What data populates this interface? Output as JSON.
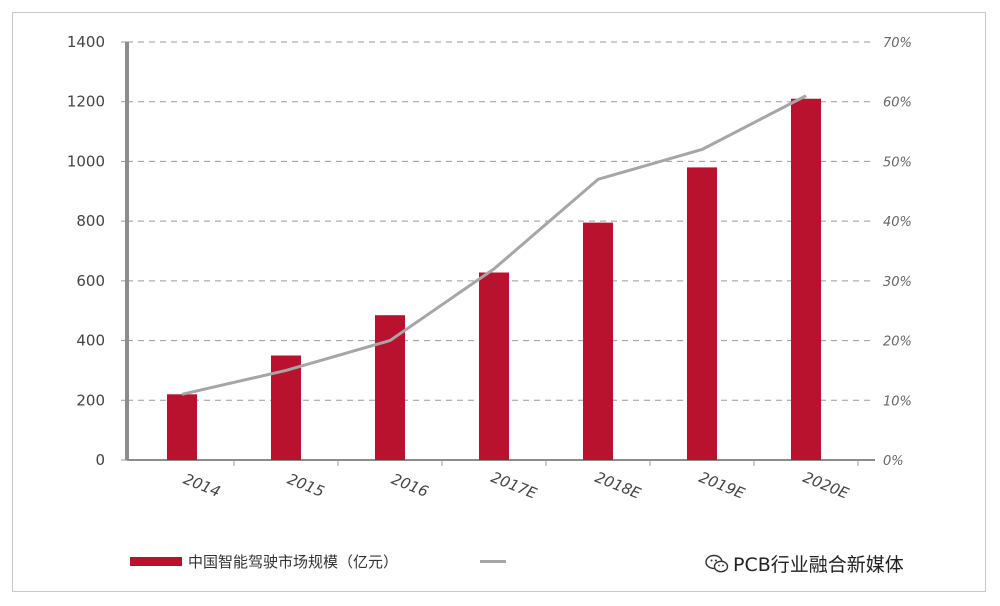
{
  "chart_data": {
    "type": "bar",
    "categories": [
      "2014",
      "2015",
      "2016",
      "2017E",
      "2018E",
      "2019E",
      "2020E"
    ],
    "series": [
      {
        "name": "中国智能驾驶市场规模（亿元）",
        "type": "bar",
        "axis": "left",
        "values": [
          220,
          350,
          485,
          628,
          795,
          980,
          1210
        ]
      },
      {
        "name": "",
        "type": "line",
        "axis": "right",
        "values": [
          0.11,
          0.15,
          0.2,
          0.32,
          0.47,
          0.52,
          0.61
        ]
      }
    ],
    "y_left": {
      "min": 0,
      "max": 1400,
      "ticks": [
        "0",
        "200",
        "400",
        "600",
        "800",
        "1000",
        "1200",
        "1400"
      ]
    },
    "y_right": {
      "min": 0,
      "max": 0.7,
      "ticks": [
        "0%",
        "10%",
        "20%",
        "30%",
        "40%",
        "50%",
        "60%",
        "70%"
      ]
    },
    "grid": true,
    "legend_position": "bottom-left",
    "colors": {
      "bar": "#b8122e",
      "line": "#a6a6a6",
      "grid": "#9a9a9a"
    }
  },
  "legend": {
    "bar_label": "中国智能驾驶市场规模（亿元）",
    "line_label": "—"
  },
  "watermark": {
    "text": "PCB行业融合新媒体",
    "icon": "wechat-icon"
  }
}
